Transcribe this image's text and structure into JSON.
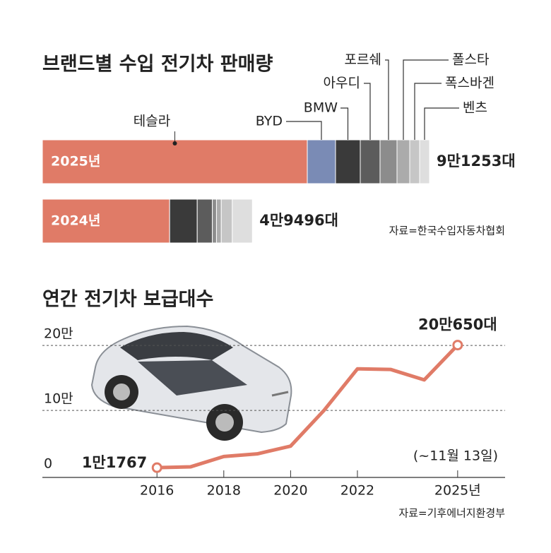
{
  "chart_data": [
    {
      "type": "stacked-bar",
      "title": "브랜드별 수입 전기차 판매량",
      "categories": [
        "2025년",
        "2024년"
      ],
      "series": [
        {
          "name": "테슬라",
          "color": "#e07b67",
          "values": [
            62443,
            30000
          ]
        },
        {
          "name": "BYD",
          "color": "#7a8bb5",
          "values": [
            6660,
            0
          ]
        },
        {
          "name": "BMW",
          "color": "#3a3a3a",
          "values": [
            5830,
            6500
          ]
        },
        {
          "name": "아우디",
          "color": "#5c5c5c",
          "values": [
            4660,
            3560
          ]
        },
        {
          "name": "포르쉐",
          "color": "#8c8c8c",
          "values": [
            4000,
            980
          ]
        },
        {
          "name": "폴스타",
          "color": "#ababab",
          "values": [
            3000,
            1130
          ]
        },
        {
          "name": "폭스바겐",
          "color": "#c6c6c6",
          "values": [
            2330,
            2600
          ]
        },
        {
          "name": "벤츠",
          "color": "#dedede",
          "values": [
            2330,
            4726
          ]
        }
      ],
      "totals": [
        91253,
        49496
      ],
      "total_labels": [
        "9만1253대",
        "4만9496대"
      ],
      "source": "자료=한국수입자동차협회"
    },
    {
      "type": "line",
      "title": "연간 전기차 보급대수",
      "x": [
        2016,
        2017,
        2018,
        2019,
        2020,
        2021,
        2022,
        2023,
        2024,
        2025
      ],
      "series": [
        {
          "name": "보급대수",
          "color": "#e07b67",
          "values": [
            11767,
            13000,
            29000,
            33000,
            45000,
            100000,
            164000,
            163000,
            147000,
            200650
          ],
          "value_labels": [
            "1만1767",
            null,
            null,
            null,
            null,
            null,
            null,
            null,
            null,
            "20만650대"
          ]
        }
      ],
      "xlim": [
        2012.57,
        2026.42
      ],
      "xticks": [
        2016,
        2018,
        2020,
        2022,
        {
          "value": 2025,
          "label": "2025년"
        }
      ],
      "ylim": [
        0,
        230000
      ],
      "yticks": [
        {
          "value": 0,
          "label": "0"
        },
        {
          "value": 100000,
          "label": "10만"
        },
        {
          "value": 200000,
          "label": "20만"
        }
      ],
      "grid": true,
      "annotation": "(~11월 13일)",
      "source": "자료=기후에너지환경부"
    }
  ]
}
